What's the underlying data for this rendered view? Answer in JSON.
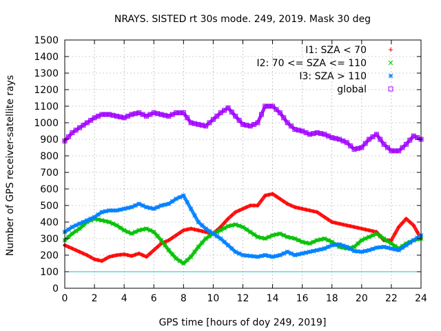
{
  "chart_data": {
    "type": "scatter",
    "title": "NRAYS. SISTED rt 30s mode. 249, 2019. Mask 30 deg",
    "xlabel": "GPS time [hours of doy 249, 2019]",
    "ylabel": "Number of GPS receiver-satellite rays",
    "xlim": [
      0,
      24
    ],
    "ylim": [
      0,
      1500
    ],
    "x_ticks": [
      0,
      2,
      4,
      6,
      8,
      10,
      12,
      14,
      16,
      18,
      20,
      22,
      24
    ],
    "y_ticks": [
      0,
      100,
      200,
      300,
      400,
      500,
      600,
      700,
      800,
      900,
      1000,
      1100,
      1200,
      1300,
      1400,
      1500
    ],
    "grid": true,
    "legend_position": "top-right",
    "reference_line": {
      "y": 100,
      "color": "#00c8c8"
    },
    "series": [
      {
        "name": "I1: SZA < 70",
        "marker": "+",
        "color": "#ff0000",
        "x": [
          0,
          0.5,
          1,
          1.5,
          2,
          2.5,
          3,
          3.5,
          4,
          4.5,
          5,
          5.5,
          6,
          6.5,
          7,
          7.5,
          8,
          8.5,
          9,
          9.5,
          10,
          10.5,
          11,
          11.5,
          12,
          12.5,
          13,
          13.5,
          14,
          14.5,
          15,
          15.5,
          16,
          16.5,
          17,
          17.5,
          18,
          18.5,
          19,
          19.5,
          20,
          20.5,
          21,
          21.5,
          22,
          22.5,
          23,
          23.5,
          24
        ],
        "values": [
          260,
          240,
          220,
          200,
          175,
          165,
          190,
          200,
          205,
          195,
          210,
          190,
          230,
          270,
          290,
          320,
          350,
          360,
          350,
          340,
          330,
          370,
          420,
          460,
          480,
          500,
          500,
          560,
          570,
          540,
          510,
          490,
          480,
          470,
          460,
          430,
          400,
          390,
          380,
          370,
          360,
          350,
          340,
          290,
          290,
          370,
          420,
          380,
          300
        ]
      },
      {
        "name": "I2: 70 <= SZA <= 110",
        "marker": "x",
        "color": "#00c000",
        "x": [
          0,
          0.5,
          1,
          1.5,
          2,
          2.5,
          3,
          3.5,
          4,
          4.5,
          5,
          5.5,
          6,
          6.5,
          7,
          7.5,
          8,
          8.5,
          9,
          9.5,
          10,
          10.5,
          11,
          11.5,
          12,
          12.5,
          13,
          13.5,
          14,
          14.5,
          15,
          15.5,
          16,
          16.5,
          17,
          17.5,
          18,
          18.5,
          19,
          19.5,
          20,
          20.5,
          21,
          21.5,
          22,
          22.5,
          23,
          23.5,
          24
        ],
        "values": [
          290,
          330,
          360,
          400,
          420,
          410,
          400,
          380,
          350,
          330,
          350,
          360,
          340,
          290,
          230,
          180,
          150,
          190,
          250,
          300,
          330,
          350,
          375,
          385,
          370,
          340,
          310,
          300,
          320,
          330,
          310,
          300,
          280,
          270,
          290,
          300,
          280,
          250,
          240,
          250,
          290,
          310,
          330,
          300,
          270,
          240,
          270,
          290,
          300
        ]
      },
      {
        "name": "I3: SZA > 110",
        "marker": "*",
        "color": "#0080ff",
        "x": [
          0,
          0.5,
          1,
          1.5,
          2,
          2.5,
          3,
          3.5,
          4,
          4.5,
          5,
          5.5,
          6,
          6.5,
          7,
          7.5,
          8,
          8.5,
          9,
          9.5,
          10,
          10.5,
          11,
          11.5,
          12,
          12.5,
          13,
          13.5,
          14,
          14.5,
          15,
          15.5,
          16,
          16.5,
          17,
          17.5,
          18,
          18.5,
          19,
          19.5,
          20,
          20.5,
          21,
          21.5,
          22,
          22.5,
          23,
          23.5,
          24
        ],
        "values": [
          340,
          370,
          390,
          410,
          430,
          460,
          470,
          470,
          480,
          490,
          510,
          490,
          480,
          500,
          510,
          540,
          560,
          480,
          400,
          360,
          330,
          300,
          260,
          220,
          200,
          195,
          190,
          200,
          190,
          200,
          220,
          200,
          210,
          220,
          230,
          240,
          260,
          265,
          250,
          225,
          220,
          230,
          245,
          250,
          240,
          230,
          260,
          290,
          320
        ]
      },
      {
        "name": "global",
        "marker": "square",
        "color": "#a000ff",
        "x": [
          0,
          0.5,
          1,
          1.5,
          2,
          2.5,
          3,
          3.5,
          4,
          4.5,
          5,
          5.5,
          6,
          6.5,
          7,
          7.5,
          8,
          8.5,
          9,
          9.5,
          10,
          10.5,
          11,
          11.5,
          12,
          12.5,
          13,
          13.5,
          14,
          14.5,
          15,
          15.5,
          16,
          16.5,
          17,
          17.5,
          18,
          18.5,
          19,
          19.5,
          20,
          20.5,
          21,
          21.5,
          22,
          22.5,
          23,
          23.5,
          24
        ],
        "values": [
          890,
          940,
          970,
          1000,
          1030,
          1050,
          1050,
          1040,
          1030,
          1050,
          1060,
          1040,
          1060,
          1050,
          1040,
          1060,
          1060,
          1000,
          990,
          980,
          1020,
          1060,
          1090,
          1040,
          990,
          980,
          1000,
          1100,
          1100,
          1060,
          1000,
          960,
          950,
          930,
          940,
          930,
          910,
          900,
          880,
          840,
          850,
          900,
          930,
          870,
          830,
          830,
          870,
          920,
          900
        ]
      }
    ]
  }
}
